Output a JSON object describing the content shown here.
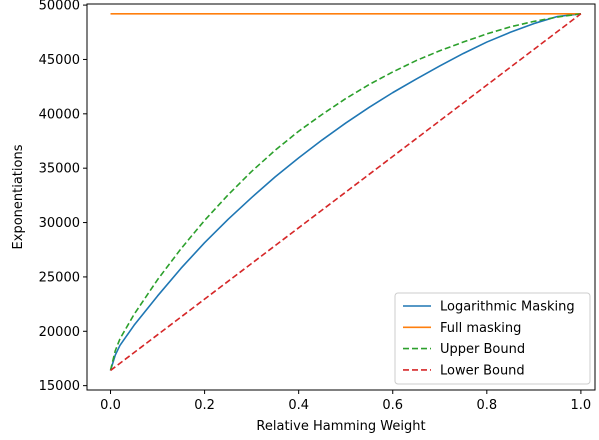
{
  "chart_data": {
    "type": "line",
    "title": "",
    "xlabel": "Relative Hamming Weight",
    "ylabel": "Exponentiations",
    "xlim": [
      -0.05,
      1.03
    ],
    "ylim": [
      14600,
      50100
    ],
    "xticks": [
      0.0,
      0.2,
      0.4,
      0.6,
      0.8,
      1.0
    ],
    "xtick_labels": [
      "0.0",
      "0.2",
      "0.4",
      "0.6",
      "0.8",
      "1.0"
    ],
    "yticks": [
      15000,
      20000,
      25000,
      30000,
      35000,
      40000,
      45000,
      50000
    ],
    "ytick_labels": [
      "15000",
      "20000",
      "25000",
      "30000",
      "35000",
      "40000",
      "45000",
      "50000"
    ],
    "grid": false,
    "legend_position": "bottom-right",
    "series": [
      {
        "name": "Logarithmic Masking",
        "color": "#1f77b4",
        "dash": "solid",
        "x": [
          0,
          0.01,
          0.02,
          0.05,
          0.1,
          0.15,
          0.2,
          0.25,
          0.3,
          0.35,
          0.4,
          0.45,
          0.5,
          0.55,
          0.6,
          0.65,
          0.7,
          0.75,
          0.8,
          0.85,
          0.9,
          0.95,
          1.0
        ],
        "y": [
          16400,
          17800,
          18700,
          20550,
          23250,
          25800,
          28150,
          30300,
          32300,
          34200,
          35950,
          37600,
          39150,
          40600,
          41950,
          43200,
          44400,
          45550,
          46600,
          47500,
          48300,
          48950,
          49200
        ]
      },
      {
        "name": "Full masking",
        "color": "#ff7f0e",
        "dash": "solid",
        "x": [
          0,
          1.0
        ],
        "y": [
          49200,
          49200
        ]
      },
      {
        "name": "Upper Bound",
        "color": "#2ca02c",
        "dash": "dashed",
        "x": [
          0,
          0.01,
          0.02,
          0.05,
          0.1,
          0.15,
          0.2,
          0.25,
          0.3,
          0.35,
          0.4,
          0.45,
          0.5,
          0.55,
          0.6,
          0.65,
          0.7,
          0.75,
          0.8,
          0.85,
          0.9,
          0.95,
          1.0
        ],
        "y": [
          16400,
          18200,
          19300,
          21550,
          24750,
          27600,
          30200,
          32550,
          34700,
          36650,
          38400,
          39950,
          41400,
          42700,
          43850,
          44900,
          45800,
          46600,
          47350,
          48000,
          48500,
          48900,
          49200
        ]
      },
      {
        "name": "Lower Bound",
        "color": "#d62728",
        "dash": "dashed",
        "x": [
          0,
          1.0
        ],
        "y": [
          16400,
          49200
        ]
      }
    ]
  }
}
